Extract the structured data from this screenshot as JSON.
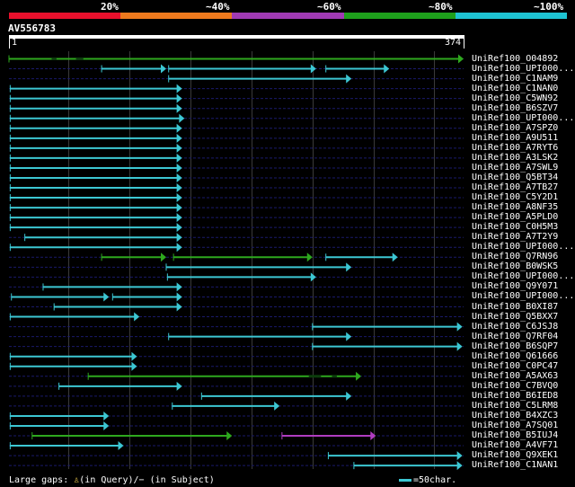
{
  "scale": {
    "colors": [
      "#e8102c",
      "#ee7a1d",
      "#a03ab4",
      "#1ea01c",
      "#1ec3d2"
    ],
    "labels": [
      "20%",
      "~40%",
      "~60%",
      "~80%",
      "~100%"
    ]
  },
  "query": {
    "name": "AV556783",
    "start": "1",
    "end": "374",
    "length": 374
  },
  "colors": {
    "cyan": "#3cc7d3",
    "green": "#2ea81e",
    "purple": "#b03cc0",
    "dash": "#1a1a6a",
    "grid": "#3a3a3a"
  },
  "hits": [
    {
      "label": "UniRef100_O04892",
      "segs": [
        [
          1,
          374,
          "green"
        ]
      ],
      "dash": [
        [
          36,
          40
        ],
        [
          56,
          62
        ]
      ]
    },
    {
      "label": "UniRef100_UPI000...",
      "segs": [
        [
          77,
          130,
          "cyan"
        ],
        [
          132,
          253,
          "cyan"
        ],
        [
          261,
          313,
          "cyan"
        ]
      ]
    },
    {
      "label": "UniRef100_C1NAM9",
      "segs": [
        [
          132,
          282,
          "cyan"
        ]
      ]
    },
    {
      "label": "UniRef100_C1NAN0",
      "segs": [
        [
          2,
          143,
          "cyan"
        ]
      ]
    },
    {
      "label": "UniRef100_C5WN92",
      "segs": [
        [
          2,
          143,
          "cyan"
        ]
      ]
    },
    {
      "label": "UniRef100_B6SZV7",
      "segs": [
        [
          2,
          143,
          "cyan"
        ]
      ]
    },
    {
      "label": "UniRef100_UPI000...",
      "segs": [
        [
          2,
          145,
          "cyan"
        ]
      ]
    },
    {
      "label": "UniRef100_A7SPZ0",
      "segs": [
        [
          2,
          143,
          "cyan"
        ]
      ]
    },
    {
      "label": "UniRef100_A9U511",
      "segs": [
        [
          2,
          143,
          "cyan"
        ]
      ]
    },
    {
      "label": "UniRef100_A7RYT6",
      "segs": [
        [
          2,
          143,
          "cyan"
        ]
      ]
    },
    {
      "label": "UniRef100_A3LSK2",
      "segs": [
        [
          2,
          143,
          "cyan"
        ]
      ]
    },
    {
      "label": "UniRef100_A7SWL9",
      "segs": [
        [
          2,
          143,
          "cyan"
        ]
      ]
    },
    {
      "label": "UniRef100_Q5BT34",
      "segs": [
        [
          2,
          143,
          "cyan"
        ]
      ]
    },
    {
      "label": "UniRef100_A7TB27",
      "segs": [
        [
          2,
          143,
          "cyan"
        ]
      ]
    },
    {
      "label": "UniRef100_C5Y2D1",
      "segs": [
        [
          2,
          143,
          "cyan"
        ]
      ]
    },
    {
      "label": "UniRef100_A8NF35",
      "segs": [
        [
          2,
          143,
          "cyan"
        ]
      ]
    },
    {
      "label": "UniRef100_A5PLD0",
      "segs": [
        [
          2,
          143,
          "cyan"
        ]
      ]
    },
    {
      "label": "UniRef100_C0H5M3",
      "segs": [
        [
          2,
          143,
          "cyan"
        ]
      ]
    },
    {
      "label": "UniRef100_A7T2Y9",
      "segs": [
        [
          14,
          143,
          "cyan"
        ]
      ]
    },
    {
      "label": "UniRef100_UPI000...",
      "segs": [
        [
          2,
          143,
          "cyan"
        ]
      ]
    },
    {
      "label": "UniRef100_Q7RN96",
      "segs": [
        [
          77,
          130,
          "green"
        ],
        [
          136,
          250,
          "green"
        ],
        [
          261,
          320,
          "cyan"
        ]
      ]
    },
    {
      "label": "UniRef100_B0WSK5",
      "segs": [
        [
          130,
          282,
          "cyan"
        ]
      ]
    },
    {
      "label": "UniRef100_UPI000...",
      "segs": [
        [
          131,
          253,
          "cyan"
        ]
      ]
    },
    {
      "label": "UniRef100_Q9Y071",
      "segs": [
        [
          29,
          143,
          "cyan"
        ]
      ]
    },
    {
      "label": "UniRef100_UPI000...",
      "segs": [
        [
          3,
          83,
          "cyan"
        ],
        [
          86,
          143,
          "cyan"
        ]
      ]
    },
    {
      "label": "UniRef100_B0XI87",
      "segs": [
        [
          38,
          143,
          "cyan"
        ]
      ]
    },
    {
      "label": "UniRef100_Q5BXX7",
      "segs": [
        [
          2,
          108,
          "cyan"
        ]
      ]
    },
    {
      "label": "UniRef100_C6JSJ8",
      "segs": [
        [
          250,
          373,
          "cyan"
        ]
      ]
    },
    {
      "label": "UniRef100_Q7RF04",
      "segs": [
        [
          132,
          282,
          "cyan"
        ]
      ]
    },
    {
      "label": "UniRef100_B6SQP7",
      "segs": [
        [
          250,
          373,
          "cyan"
        ]
      ]
    },
    {
      "label": "UniRef100_Q61666",
      "segs": [
        [
          2,
          106,
          "cyan"
        ]
      ]
    },
    {
      "label": "UniRef100_C0PC47",
      "segs": [
        [
          2,
          106,
          "cyan"
        ]
      ]
    },
    {
      "label": "UniRef100_A5AX63",
      "segs": [
        [
          66,
          290,
          "green"
        ]
      ],
      "dash": [
        [
          247,
          257
        ],
        [
          266,
          270
        ]
      ]
    },
    {
      "label": "UniRef100_C7BVQ0",
      "segs": [
        [
          42,
          143,
          "cyan"
        ]
      ]
    },
    {
      "label": "UniRef100_B6IED8",
      "segs": [
        [
          159,
          282,
          "cyan"
        ]
      ]
    },
    {
      "label": "UniRef100_C5LRM8",
      "segs": [
        [
          135,
          223,
          "cyan"
        ]
      ]
    },
    {
      "label": "UniRef100_B4XZC3",
      "segs": [
        [
          2,
          83,
          "cyan"
        ]
      ]
    },
    {
      "label": "UniRef100_A7SQ01",
      "segs": [
        [
          2,
          83,
          "cyan"
        ]
      ]
    },
    {
      "label": "UniRef100_B5IUJ4",
      "segs": [
        [
          20,
          184,
          "green"
        ],
        [
          225,
          302,
          "purple"
        ]
      ]
    },
    {
      "label": "UniRef100_A4VF71",
      "segs": [
        [
          2,
          95,
          "cyan"
        ]
      ]
    },
    {
      "label": "UniRef100_Q9XEK1",
      "segs": [
        [
          263,
          373,
          "cyan"
        ]
      ]
    },
    {
      "label": "UniRef100_C1NAN1",
      "segs": [
        [
          284,
          373,
          "cyan"
        ]
      ]
    }
  ],
  "legend": {
    "text": "Large gaps: ",
    "query_mark": "♙",
    "query_text": "(in Query)/",
    "subject_mark": "−",
    "subject_text": " (in Subject)",
    "scale_text": "=50char."
  }
}
